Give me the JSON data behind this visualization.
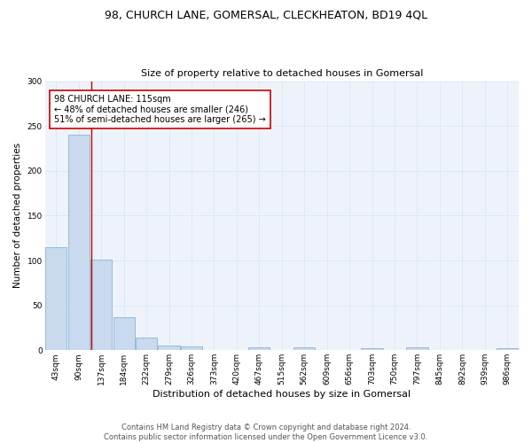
{
  "title": "98, CHURCH LANE, GOMERSAL, CLECKHEATON, BD19 4QL",
  "subtitle": "Size of property relative to detached houses in Gomersal",
  "xlabel": "Distribution of detached houses by size in Gomersal",
  "ylabel": "Number of detached properties",
  "bar_color": "#c9d9ee",
  "bar_edge_color": "#89b4d4",
  "grid_color": "#dce8f5",
  "bg_color": "#eef3fb",
  "vline_color": "#cc0000",
  "vline_x": 1.55,
  "annotation_text": "98 CHURCH LANE: 115sqm\n← 48% of detached houses are smaller (246)\n51% of semi-detached houses are larger (265) →",
  "annotation_box_color": "#ffffff",
  "annotation_box_edge": "#cc0000",
  "bins": [
    "43sqm",
    "90sqm",
    "137sqm",
    "184sqm",
    "232sqm",
    "279sqm",
    "326sqm",
    "373sqm",
    "420sqm",
    "467sqm",
    "515sqm",
    "562sqm",
    "609sqm",
    "656sqm",
    "703sqm",
    "750sqm",
    "797sqm",
    "845sqm",
    "892sqm",
    "939sqm",
    "986sqm"
  ],
  "heights": [
    115,
    240,
    101,
    37,
    14,
    5,
    4,
    0,
    0,
    3,
    0,
    3,
    0,
    0,
    2,
    0,
    3,
    0,
    0,
    0,
    2
  ],
  "ylim": [
    0,
    300
  ],
  "yticks": [
    0,
    50,
    100,
    150,
    200,
    250,
    300
  ],
  "footer": "Contains HM Land Registry data © Crown copyright and database right 2024.\nContains public sector information licensed under the Open Government Licence v3.0.",
  "title_fontsize": 9,
  "subtitle_fontsize": 8,
  "tick_fontsize": 6.5,
  "xlabel_fontsize": 8,
  "ylabel_fontsize": 7.5,
  "footer_fontsize": 6,
  "annot_fontsize": 7
}
